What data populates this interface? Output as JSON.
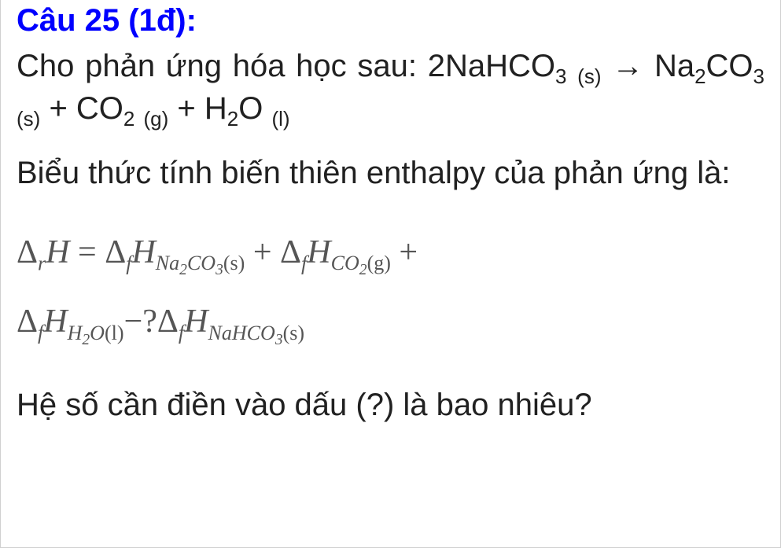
{
  "colors": {
    "title": "#0000ff",
    "body": "#212121",
    "formula": "#555555",
    "border": "#d0d0d0",
    "background": "#ffffff"
  },
  "typography": {
    "title_fontsize": 40,
    "body_fontsize": 40,
    "formula_fontsize": 42,
    "title_weight": "bold",
    "formula_style": "italic",
    "formula_family": "Georgia, Times New Roman, serif"
  },
  "question": {
    "title": "Câu 25 (1đ):",
    "prompt_intro": "Cho phản ứng hóa học sau: ",
    "reaction": {
      "lhs_coeff": "2",
      "lhs_species": "NaHCO",
      "lhs_sub": "3",
      "lhs_state": "(s)",
      "arrow": "→",
      "rhs": [
        {
          "species": "Na",
          "sub1": "2",
          "mid": "CO",
          "sub2": "3",
          "state": "(s)"
        },
        {
          "species": "CO",
          "sub1": "2",
          "mid": "",
          "sub2": "",
          "state": "(g)"
        },
        {
          "species": "H",
          "sub1": "2",
          "mid": "O",
          "sub2": "",
          "state": "(l)"
        }
      ],
      "plus": " + "
    },
    "prompt_enthalpy": "Biểu thức tính biến thiên enthalpy của phản ứng là:",
    "formula": {
      "delta": "Δ",
      "r": "r",
      "f": "f",
      "H": "H",
      "eq": " = ",
      "plus": " + ",
      "minus": "−",
      "qmark": "?",
      "terms": [
        {
          "label_pre": "Na",
          "label_sub1": "2",
          "label_mid": "CO",
          "label_sub2": "3",
          "state": "(s)"
        },
        {
          "label_pre": "CO",
          "label_sub1": "2",
          "label_mid": "",
          "label_sub2": "",
          "state": "(g)"
        },
        {
          "label_pre": "H",
          "label_sub1": "2",
          "label_mid": "O",
          "label_sub2": "",
          "state": "(l)"
        },
        {
          "label_pre": "NaHCO",
          "label_sub1": "3",
          "label_mid": "",
          "label_sub2": "",
          "state": "(s)"
        }
      ]
    },
    "final": "Hệ số cần điền vào dấu (?) là bao nhiêu?"
  }
}
